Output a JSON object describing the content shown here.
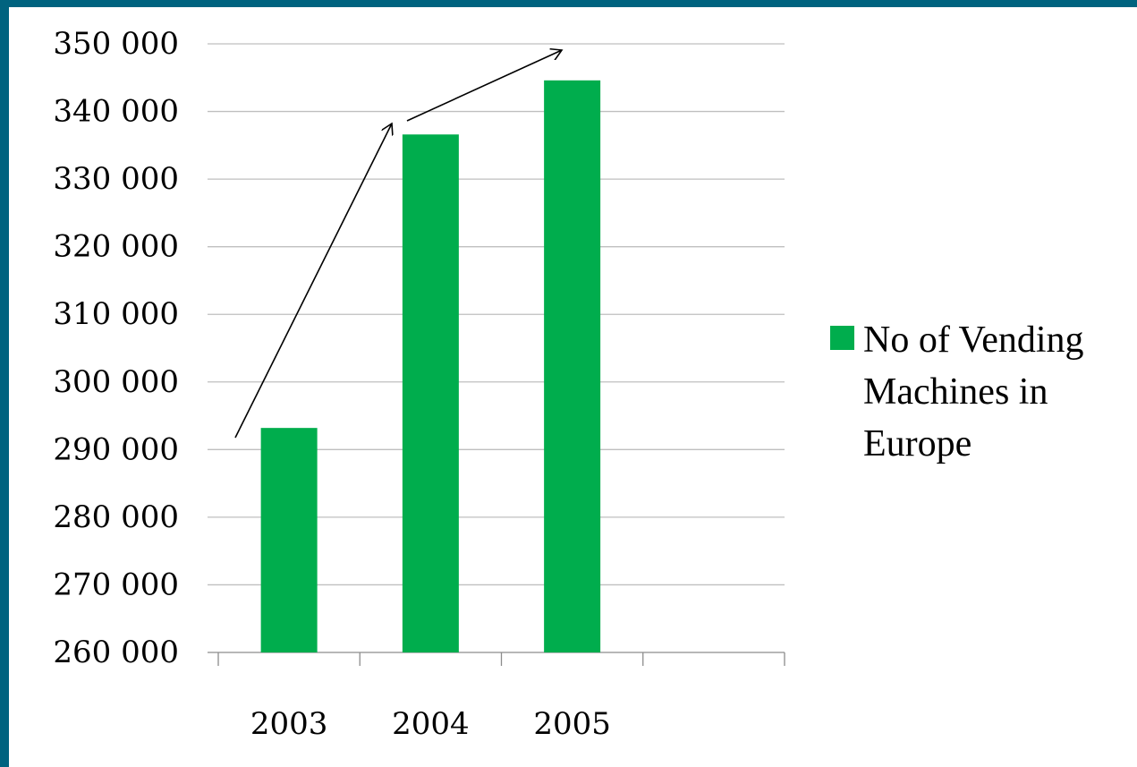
{
  "colors": {
    "frame": "#00637f",
    "bar": "#00ad4d",
    "grid": "#bfbfbf",
    "axis": "#8c8c8c",
    "arrow": "#000000"
  },
  "chart_data": {
    "type": "bar",
    "categories": [
      "2003",
      "2004",
      "2005"
    ],
    "series": [
      {
        "name": "No of Vending Machines in Europe",
        "values": [
          293200,
          336600,
          344600
        ]
      }
    ],
    "title": "",
    "xlabel": "",
    "ylabel": "",
    "ylim": [
      260000,
      350000
    ],
    "y_ticks": [
      "260 000",
      "270 000",
      "280 000",
      "290 000",
      "300 000",
      "310 000",
      "320 000",
      "330 000",
      "340 000",
      "350 000"
    ],
    "legend": {
      "position": "right",
      "lines": [
        "No of Vending",
        "Machines in",
        "Europe"
      ]
    },
    "grid": true,
    "annotations": [
      "upward arrow from 2003 to 2004",
      "upward arrow from 2004 to 2005"
    ]
  }
}
